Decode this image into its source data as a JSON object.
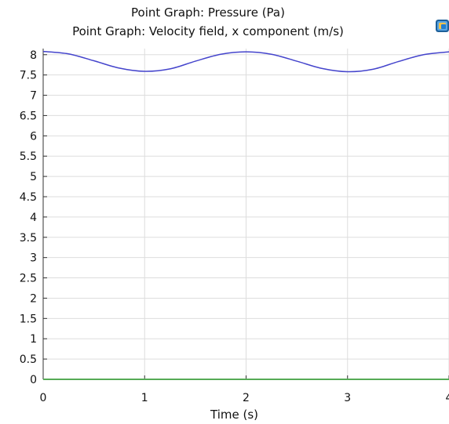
{
  "chart_data": {
    "type": "line",
    "title_lines": [
      "Point Graph: Pressure (Pa)",
      "Point Graph: Velocity field, x component (m/s)"
    ],
    "xlabel": "Time (s)",
    "ylabel": "",
    "xlim": [
      0,
      4
    ],
    "ylim": [
      0,
      8.15
    ],
    "x_ticks": [
      0,
      1,
      2,
      3,
      4
    ],
    "x_tick_labels": [
      "0",
      "1",
      "2",
      "3",
      "4"
    ],
    "y_ticks": [
      0,
      0.5,
      1,
      1.5,
      2,
      2.5,
      3,
      3.5,
      4,
      4.5,
      5,
      5.5,
      6,
      6.5,
      7,
      7.5,
      8
    ],
    "y_tick_labels": [
      "0",
      "0.5",
      "1",
      "1.5",
      "2",
      "2.5",
      "3",
      "3.5",
      "4",
      "4.5",
      "5",
      "5.5",
      "6",
      "6.5",
      "7",
      "7.5",
      "8"
    ],
    "grid": true,
    "series": [
      {
        "color": "#4444cc",
        "x": [
          0,
          0.25,
          0.5,
          0.75,
          1,
          1.25,
          1.5,
          1.75,
          2,
          2.25,
          2.5,
          2.75,
          3,
          3.25,
          3.5,
          3.75,
          4
        ],
        "y": [
          8.08,
          8.02,
          7.85,
          7.67,
          7.59,
          7.65,
          7.84,
          8.01,
          8.07,
          8.01,
          7.84,
          7.66,
          7.58,
          7.64,
          7.83,
          8.0,
          8.07
        ]
      },
      {
        "color": "#55aa55",
        "x": [
          0,
          1,
          2,
          3,
          4
        ],
        "y": [
          0,
          0,
          0,
          0,
          0
        ]
      }
    ]
  },
  "colors": {
    "grid": "#dddddd",
    "axis": "#333333",
    "blue_series": "#4444cc",
    "green_series": "#55aa55",
    "legend_icon": "#2a7fc0"
  },
  "icons": {
    "legend_toggle": "comsol-plot-icon"
  }
}
